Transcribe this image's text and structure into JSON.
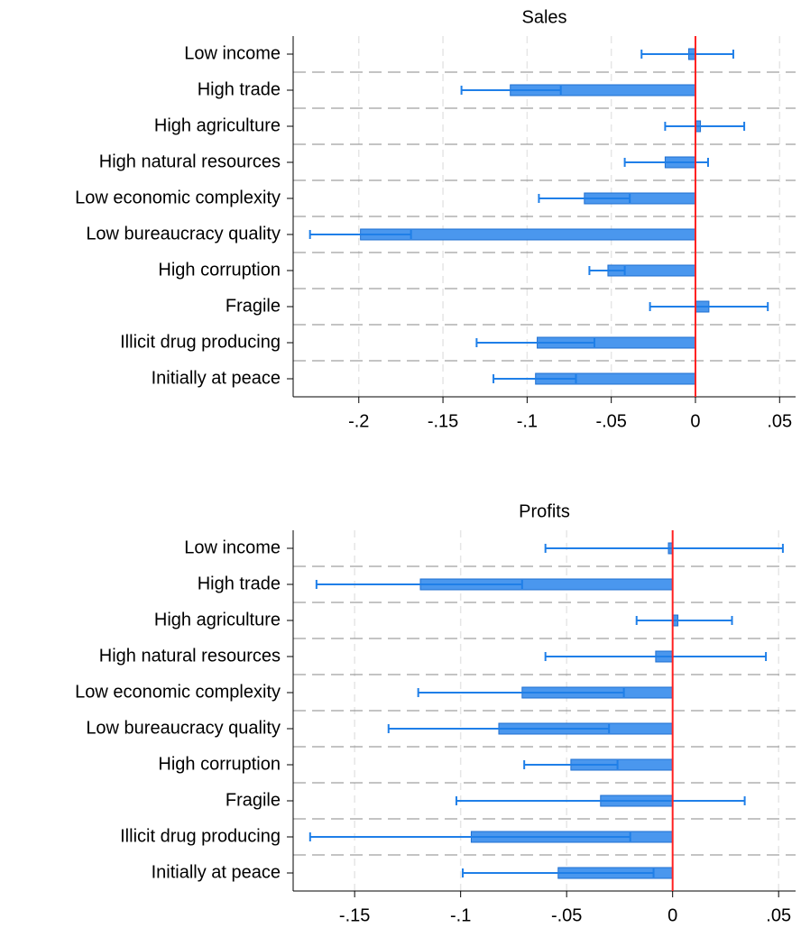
{
  "chart_data": [
    {
      "type": "bar",
      "orientation": "horizontal",
      "title": "Sales",
      "categories": [
        "Low income",
        "High trade",
        "High agriculture",
        "High natural resources",
        "Low economic complexity",
        "Low bureaucracy quality",
        "High corruption",
        "Fragile",
        "Illicit drug producing",
        "Initially at peace"
      ],
      "values": [
        -0.004,
        -0.11,
        0.003,
        -0.018,
        -0.066,
        -0.199,
        -0.052,
        0.008,
        -0.094,
        -0.095
      ],
      "ci_low": [
        -0.032,
        -0.139,
        -0.018,
        -0.042,
        -0.093,
        -0.229,
        -0.063,
        -0.027,
        -0.13,
        -0.12
      ],
      "ci_high": [
        0.0225,
        -0.08,
        0.029,
        0.0075,
        -0.039,
        -0.169,
        -0.042,
        0.043,
        -0.06,
        -0.071
      ],
      "xlim": [
        -0.239,
        0.0595
      ],
      "xticks": [
        {
          "value": -0.2,
          "label": "-.2"
        },
        {
          "value": -0.15,
          "label": "-.15"
        },
        {
          "value": -0.1,
          "label": "-.1"
        },
        {
          "value": -0.05,
          "label": "-.05"
        },
        0,
        {
          "value": 0.05,
          "label": ".05"
        }
      ],
      "color": "#4a97ee",
      "ref_line_color": "#ff2020",
      "grid": true
    },
    {
      "type": "bar",
      "orientation": "horizontal",
      "title": "Profits",
      "categories": [
        "Low income",
        "High trade",
        "High agriculture",
        "High natural resources",
        "Low economic complexity",
        "Low bureaucracy quality",
        "High corruption",
        "Fragile",
        "Illicit drug producing",
        "Initially at peace"
      ],
      "values": [
        -0.002,
        -0.119,
        0.0025,
        -0.008,
        -0.071,
        -0.082,
        -0.048,
        -0.034,
        -0.095,
        -0.054
      ],
      "ci_low": [
        -0.06,
        -0.168,
        -0.017,
        -0.06,
        -0.12,
        -0.134,
        -0.07,
        -0.102,
        -0.171,
        -0.099
      ],
      "ci_high": [
        0.052,
        -0.071,
        0.028,
        0.044,
        -0.023,
        -0.03,
        -0.026,
        0.034,
        -0.02,
        -0.009
      ],
      "xlim": [
        -0.179,
        0.058
      ],
      "xticks": [
        {
          "value": -0.15,
          "label": "-.15"
        },
        {
          "value": -0.1,
          "label": "-.1"
        },
        {
          "value": -0.05,
          "label": "-.05"
        },
        0,
        {
          "value": 0.05,
          "label": ".05"
        }
      ],
      "color": "#4a97ee",
      "ref_line_color": "#ff2020",
      "grid": true
    }
  ]
}
